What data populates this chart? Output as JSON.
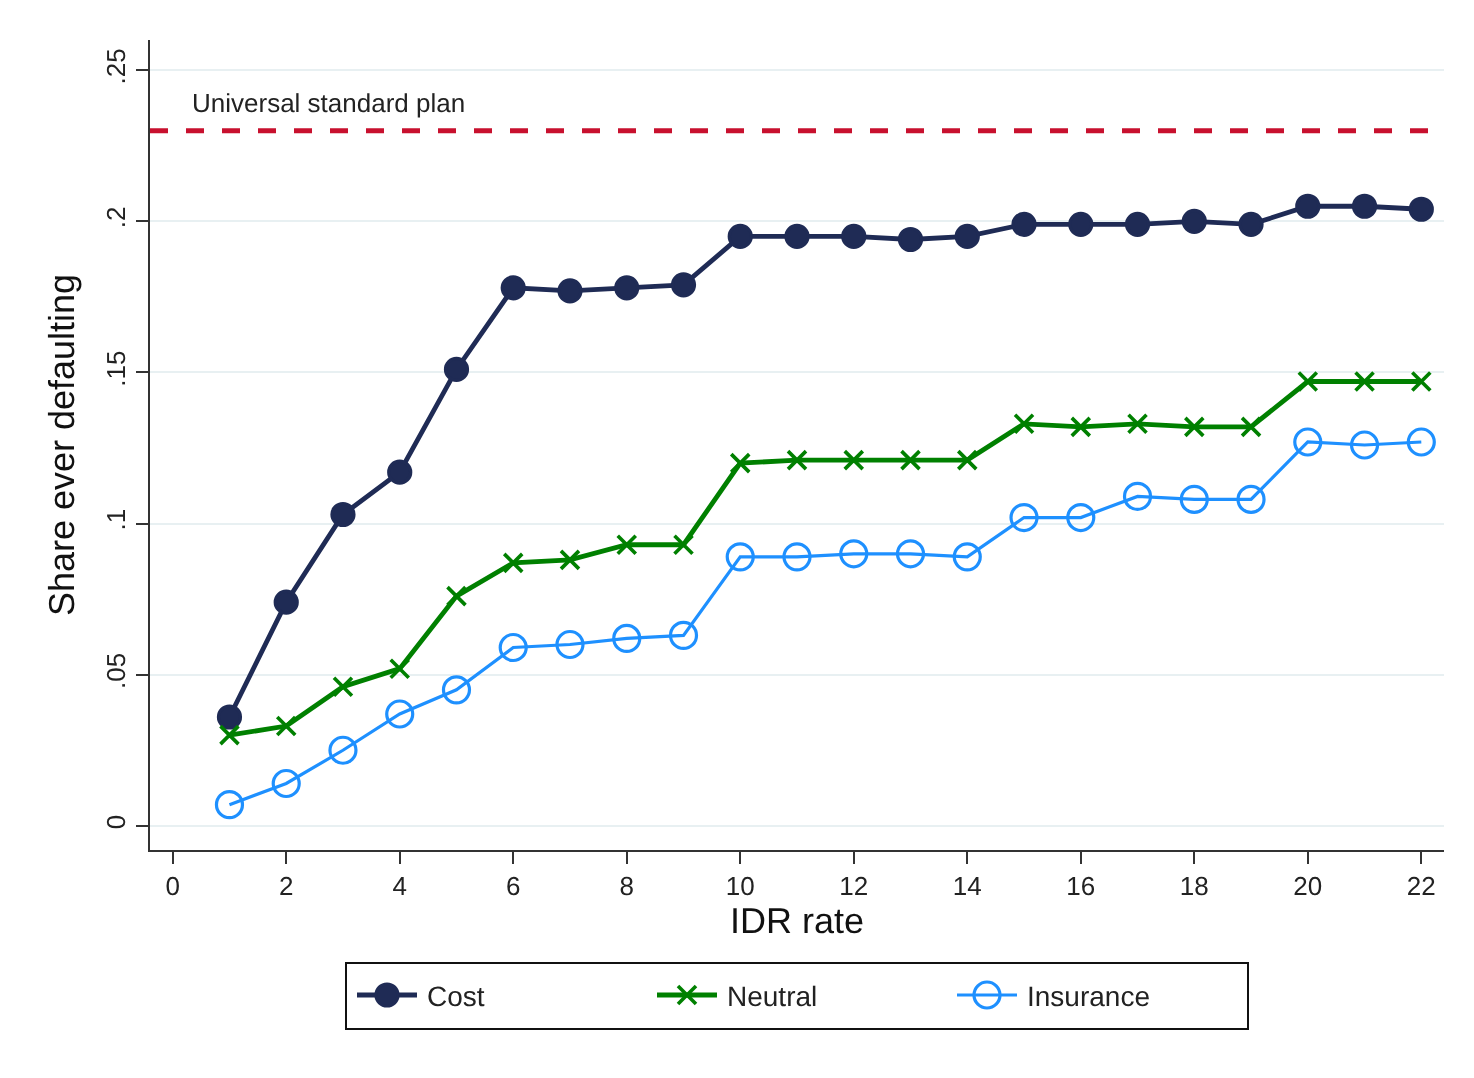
{
  "chart_data": {
    "type": "line",
    "xlabel": "IDR rate",
    "ylabel": "Share ever defaulting",
    "x": [
      1,
      2,
      3,
      4,
      5,
      6,
      7,
      8,
      9,
      10,
      11,
      12,
      13,
      14,
      15,
      16,
      17,
      18,
      19,
      20,
      21,
      22
    ],
    "series": [
      {
        "name": "Cost",
        "color": "#1f2b55",
        "marker": "circle",
        "values": [
          0.036,
          0.074,
          0.103,
          0.117,
          0.151,
          0.178,
          0.177,
          0.178,
          0.179,
          0.195,
          0.195,
          0.195,
          0.194,
          0.195,
          0.199,
          0.199,
          0.199,
          0.2,
          0.199,
          0.205,
          0.205,
          0.204
        ]
      },
      {
        "name": "Neutral",
        "color": "#008000",
        "marker": "cross",
        "values": [
          0.03,
          0.033,
          0.046,
          0.052,
          0.076,
          0.087,
          0.088,
          0.093,
          0.093,
          0.12,
          0.121,
          0.121,
          0.121,
          0.121,
          0.133,
          0.132,
          0.133,
          0.132,
          0.132,
          0.147,
          0.147,
          0.147
        ]
      },
      {
        "name": "Insurance",
        "color": "#1e90ff",
        "marker": "circle-open",
        "values": [
          0.007,
          0.014,
          0.025,
          0.037,
          0.045,
          0.059,
          0.06,
          0.062,
          0.063,
          0.089,
          0.089,
          0.09,
          0.09,
          0.089,
          0.102,
          0.102,
          0.109,
          0.108,
          0.108,
          0.127,
          0.126,
          0.127
        ]
      }
    ],
    "xlim": [
      -0.4,
      22.4
    ],
    "xticks": [
      0,
      2,
      4,
      6,
      8,
      10,
      12,
      14,
      16,
      18,
      20,
      22
    ],
    "ylim": [
      -0.008,
      0.26
    ],
    "yticks": [
      0,
      {
        "value": 0.05,
        "label": ".05"
      },
      {
        "value": 0.1,
        "label": ".1"
      },
      {
        "value": 0.15,
        "label": ".15"
      },
      {
        "value": 0.2,
        "label": ".2"
      },
      {
        "value": 0.25,
        "label": ".25"
      }
    ],
    "ref_lines": [
      {
        "axis": "y",
        "value": 0.23,
        "label": "Universal standard plan",
        "color": "#c8102e",
        "line_style": "dashed"
      }
    ],
    "grid": "y",
    "legend": "bottom",
    "line_style": "solid"
  }
}
